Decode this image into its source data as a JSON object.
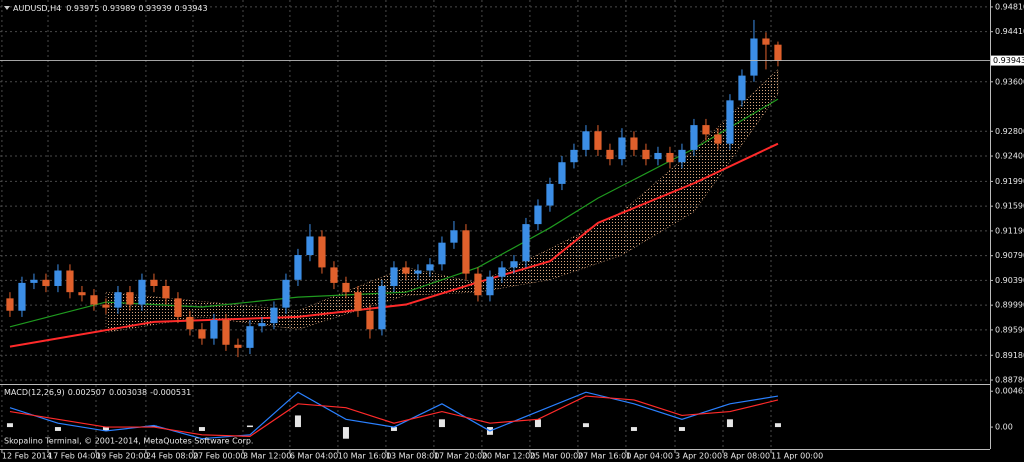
{
  "chart_data": {
    "type": "candlestick",
    "symbol": "AUDUSD,H4",
    "header_values": [
      0.93975,
      0.93989,
      0.93939,
      0.93943
    ],
    "copyright": "Skopalino Terminal, © 2001-2014, MetaQuotes Software Corp.",
    "up_color": "#3c8ee6",
    "down_color": "#e0602c",
    "grid": true,
    "xlim": [
      -0.83,
      81.67
    ],
    "ylim": [
      0.88732,
      0.94922
    ],
    "yticks": [
      {
        "value": 0.9481,
        "label": "0.94810"
      },
      {
        "value": 0.9441,
        "label": "0.94410"
      },
      {
        "value": 0.936,
        "label": "0.93600"
      },
      {
        "value": 0.928,
        "label": "0.92800"
      },
      {
        "value": 0.924,
        "label": "0.92400"
      },
      {
        "value": 0.9199,
        "label": "0.91990"
      },
      {
        "value": 0.9159,
        "label": "0.91590"
      },
      {
        "value": 0.9119,
        "label": "0.91190"
      },
      {
        "value": 0.9079,
        "label": "0.90790"
      },
      {
        "value": 0.9039,
        "label": "0.90390"
      },
      {
        "value": 0.8999,
        "label": "0.89990"
      },
      {
        "value": 0.8959,
        "label": "0.89590"
      },
      {
        "value": 0.8918,
        "label": "0.89180"
      },
      {
        "value": 0.8878,
        "label": "0.88780"
      }
    ],
    "xticks": [
      {
        "value": -0.67,
        "label": "12 Feb 2014"
      },
      {
        "value": 3.17,
        "label": "17 Feb 04:00"
      },
      {
        "value": 7.17,
        "label": "19 Feb 20:00"
      },
      {
        "value": 11.33,
        "label": "24 Feb 08:00"
      },
      {
        "value": 15.25,
        "label": "27 Feb 00:00"
      },
      {
        "value": 19.42,
        "label": "3 Mar 12:00"
      },
      {
        "value": 23.33,
        "label": "6 Mar 04:00"
      },
      {
        "value": 27.33,
        "label": "10 Mar 16:00"
      },
      {
        "value": 31.33,
        "label": "13 Mar 08:00"
      },
      {
        "value": 35.33,
        "label": "17 Mar 20:00"
      },
      {
        "value": 39.33,
        "label": "20 Mar 12:00"
      },
      {
        "value": 43.33,
        "label": "25 Mar 00:00"
      },
      {
        "value": 47.33,
        "label": "27 Mar 16:00"
      },
      {
        "value": 51.33,
        "label": "1 Apr 04:00"
      },
      {
        "value": 55.42,
        "label": "3 Apr 20:00"
      },
      {
        "value": 59.42,
        "label": "8 Apr 08:00"
      },
      {
        "value": 63.42,
        "label": "11 Apr 00:00"
      }
    ],
    "last_price": 0.93943,
    "candles": {
      "open": [
        0.901,
        0.899,
        0.9035,
        0.904,
        0.903,
        0.9055,
        0.902,
        0.9015,
        0.9,
        0.8995,
        0.902,
        0.9,
        0.904,
        0.903,
        0.901,
        0.898,
        0.896,
        0.8945,
        0.8975,
        0.8935,
        0.893,
        0.8965,
        0.897,
        0.8995,
        0.904,
        0.908,
        0.911,
        0.906,
        0.9035,
        0.902,
        0.899,
        0.896,
        0.903,
        0.906,
        0.905,
        0.9055,
        0.9065,
        0.91,
        0.912,
        0.905,
        0.9015,
        0.9045,
        0.906,
        0.907,
        0.913,
        0.916,
        0.9195,
        0.923,
        0.925,
        0.928,
        0.925,
        0.9235,
        0.927,
        0.925,
        0.9235,
        0.9245,
        0.923,
        0.925,
        0.929,
        0.9275,
        0.926,
        0.933,
        0.937,
        0.943,
        0.942
      ],
      "high": [
        0.902,
        0.9045,
        0.905,
        0.905,
        0.9065,
        0.9065,
        0.903,
        0.9025,
        0.901,
        0.903,
        0.903,
        0.905,
        0.905,
        0.904,
        0.902,
        0.899,
        0.897,
        0.8985,
        0.8985,
        0.8945,
        0.8975,
        0.898,
        0.9005,
        0.905,
        0.909,
        0.913,
        0.912,
        0.907,
        0.9045,
        0.903,
        0.9,
        0.904,
        0.907,
        0.907,
        0.9065,
        0.9075,
        0.911,
        0.9135,
        0.913,
        0.906,
        0.9055,
        0.907,
        0.908,
        0.914,
        0.917,
        0.9205,
        0.924,
        0.926,
        0.929,
        0.929,
        0.926,
        0.9285,
        0.928,
        0.926,
        0.9255,
        0.9255,
        0.926,
        0.93,
        0.93,
        0.9285,
        0.934,
        0.938,
        0.946,
        0.944,
        0.9425
      ],
      "low": [
        0.898,
        0.898,
        0.9025,
        0.902,
        0.902,
        0.901,
        0.9005,
        0.899,
        0.8985,
        0.8985,
        0.899,
        0.899,
        0.902,
        0.9,
        0.897,
        0.895,
        0.8935,
        0.8935,
        0.8925,
        0.8915,
        0.892,
        0.8955,
        0.896,
        0.8985,
        0.903,
        0.907,
        0.905,
        0.9025,
        0.901,
        0.898,
        0.8945,
        0.895,
        0.902,
        0.904,
        0.904,
        0.9045,
        0.9055,
        0.909,
        0.904,
        0.9005,
        0.9005,
        0.9035,
        0.905,
        0.906,
        0.912,
        0.915,
        0.9185,
        0.922,
        0.924,
        0.924,
        0.9225,
        0.9225,
        0.924,
        0.9225,
        0.9225,
        0.922,
        0.922,
        0.924,
        0.9265,
        0.925,
        0.925,
        0.932,
        0.936,
        0.938,
        0.9385
      ],
      "close": [
        0.899,
        0.9035,
        0.904,
        0.903,
        0.9055,
        0.902,
        0.9015,
        0.9,
        0.8995,
        0.902,
        0.9,
        0.904,
        0.903,
        0.901,
        0.898,
        0.896,
        0.8945,
        0.8975,
        0.8935,
        0.893,
        0.8965,
        0.897,
        0.8995,
        0.904,
        0.908,
        0.911,
        0.906,
        0.9035,
        0.902,
        0.899,
        0.896,
        0.903,
        0.906,
        0.905,
        0.9055,
        0.9065,
        0.91,
        0.912,
        0.905,
        0.9015,
        0.9045,
        0.906,
        0.907,
        0.913,
        0.916,
        0.9195,
        0.923,
        0.925,
        0.928,
        0.925,
        0.9235,
        0.927,
        0.925,
        0.9235,
        0.9245,
        0.923,
        0.925,
        0.929,
        0.9275,
        0.926,
        0.933,
        0.937,
        0.943,
        0.942,
        0.93943
      ]
    },
    "cloud": {
      "color": "#d9a57c",
      "x": [
        8,
        16,
        24,
        33,
        39,
        45,
        51,
        57,
        64
      ],
      "upper": [
        0.902,
        0.9005,
        0.899,
        0.906,
        0.9035,
        0.909,
        0.915,
        0.925,
        0.938
      ],
      "lower": [
        0.8955,
        0.898,
        0.896,
        0.9015,
        0.902,
        0.904,
        0.908,
        0.915,
        0.934
      ]
    },
    "ma_fast": {
      "color": "#1f9a1f",
      "x": [
        0,
        8,
        16,
        24,
        33,
        39,
        45,
        49,
        57,
        64
      ],
      "values": [
        0.8964,
        0.9004,
        0.8996,
        0.9012,
        0.902,
        0.906,
        0.9124,
        0.9172,
        0.9252,
        0.9332
      ]
    },
    "ma_slow": {
      "color": "#ff2a2a",
      "x": [
        0,
        12,
        24,
        33,
        39,
        45,
        49,
        57,
        64
      ],
      "values": [
        0.8932,
        0.8972,
        0.898,
        0.9,
        0.9036,
        0.907,
        0.9132,
        0.9196,
        0.926
      ]
    },
    "macd": {
      "title": "MACD(12,26,9)",
      "header_values": [
        0.002507,
        0.003038,
        -0.000531
      ],
      "ylim": [
        -0.0027,
        0.0053
      ],
      "yticks": [
        0.004626,
        {
          "value": 0,
          "label": "0.00"
        }
      ],
      "x": [
        0,
        4,
        8,
        12,
        16,
        20,
        24,
        28,
        32,
        36,
        40,
        44,
        48,
        52,
        56,
        60,
        64
      ],
      "histogram": [
        0.0005,
        -0.0005,
        -0.0005,
        0.0002,
        -0.0005,
        0.0002,
        0.0015,
        -0.0015,
        -0.0005,
        0.001,
        -0.001,
        0.001,
        0.0005,
        -0.0005,
        -0.0005,
        0.001,
        0.0005
      ],
      "main": {
        "color": "#2a80ff",
        "values": [
          0.0025,
          0.0005,
          -0.0005,
          0.0002,
          -0.0015,
          -0.001,
          0.0045,
          0.001,
          0,
          0.003,
          -0.0005,
          0.002,
          0.0045,
          0.003,
          0.001,
          0.003,
          0.004
        ]
      },
      "signal": {
        "color": "#ff2a2a",
        "values": [
          0.002,
          0.001,
          0,
          0,
          -0.001,
          -0.0012,
          0.003,
          0.0025,
          0.0005,
          0.002,
          0.0005,
          0.001,
          0.004,
          0.0035,
          0.0015,
          0.002,
          0.0035
        ]
      }
    }
  }
}
